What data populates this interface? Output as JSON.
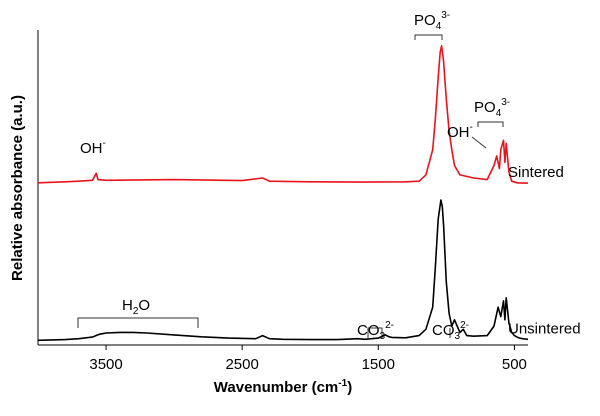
{
  "chart_data": {
    "type": "line",
    "ylabel": "Relative  absorbance (a.u.)",
    "xlabel": {
      "text": "Wavenumber (cm",
      "sup": "-1",
      "end": ")"
    },
    "xlim": [
      4000,
      400
    ],
    "xticks": [
      3500,
      2500,
      1500,
      500
    ],
    "ylim": [
      0,
      100
    ],
    "series": [
      {
        "name": "Sintered",
        "color": "#e8141b",
        "x": [
          4000,
          3800,
          3700,
          3600,
          3572,
          3560,
          3500,
          3000,
          2500,
          2350,
          2300,
          2000,
          1600,
          1300,
          1200,
          1150,
          1100,
          1080,
          1060,
          1045,
          1035,
          1020,
          1000,
          980,
          960,
          940,
          900,
          800,
          700,
          650,
          630,
          610,
          600,
          580,
          570,
          560,
          540,
          520,
          480,
          440,
          400
        ],
        "values": [
          51.5,
          51.8,
          52,
          52.3,
          54.5,
          52.5,
          52.3,
          52.5,
          52.2,
          53,
          52,
          51.8,
          51.7,
          51.8,
          52,
          54,
          62,
          72,
          85,
          93,
          95,
          90,
          78,
          68,
          62,
          57,
          54,
          53,
          52.5,
          57,
          60,
          56,
          62,
          65,
          58,
          64,
          55,
          52,
          51.5,
          51.4,
          51.4
        ]
      },
      {
        "name": "Unsintered",
        "color": "#000000",
        "x": [
          4000,
          3800,
          3700,
          3600,
          3550,
          3500,
          3400,
          3300,
          3200,
          3000,
          2800,
          2600,
          2400,
          2350,
          2300,
          2200,
          2000,
          1800,
          1650,
          1600,
          1500,
          1450,
          1420,
          1400,
          1300,
          1200,
          1150,
          1100,
          1080,
          1060,
          1040,
          1030,
          1020,
          1000,
          980,
          960,
          940,
          900,
          875,
          850,
          800,
          700,
          650,
          620,
          600,
          580,
          570,
          560,
          540,
          520,
          500,
          480,
          460,
          440,
          420,
          400
        ],
        "values": [
          1.5,
          1.7,
          2.0,
          2.5,
          3.4,
          3.8,
          4.0,
          4.0,
          3.8,
          3.2,
          2.6,
          2.2,
          2.0,
          3.0,
          2.0,
          1.8,
          1.7,
          1.7,
          2.0,
          1.8,
          2.2,
          3.2,
          2.6,
          2.4,
          2.3,
          3.0,
          5,
          12,
          25,
          40,
          46,
          44,
          38,
          20,
          10,
          6,
          8,
          4,
          5,
          3,
          2.8,
          3.0,
          6,
          12,
          9,
          14,
          8,
          15,
          7,
          4,
          3,
          2.5,
          2.2,
          2,
          1.9,
          1.8
        ]
      }
    ],
    "annotations": [
      {
        "base": "OH",
        "sup": "-"
      },
      {
        "base": "PO",
        "sub": "4",
        "sup": "3-"
      },
      {
        "base": "OH",
        "sup": "-"
      },
      {
        "base": "PO",
        "sub": "4",
        "sup": "3-"
      },
      {
        "base": "H",
        "sub": "2",
        "end": "O"
      },
      {
        "base": "CO",
        "sub": "3",
        "sup": "2-"
      },
      {
        "base": "CO",
        "sub": "3",
        "sup": "2-"
      }
    ]
  }
}
